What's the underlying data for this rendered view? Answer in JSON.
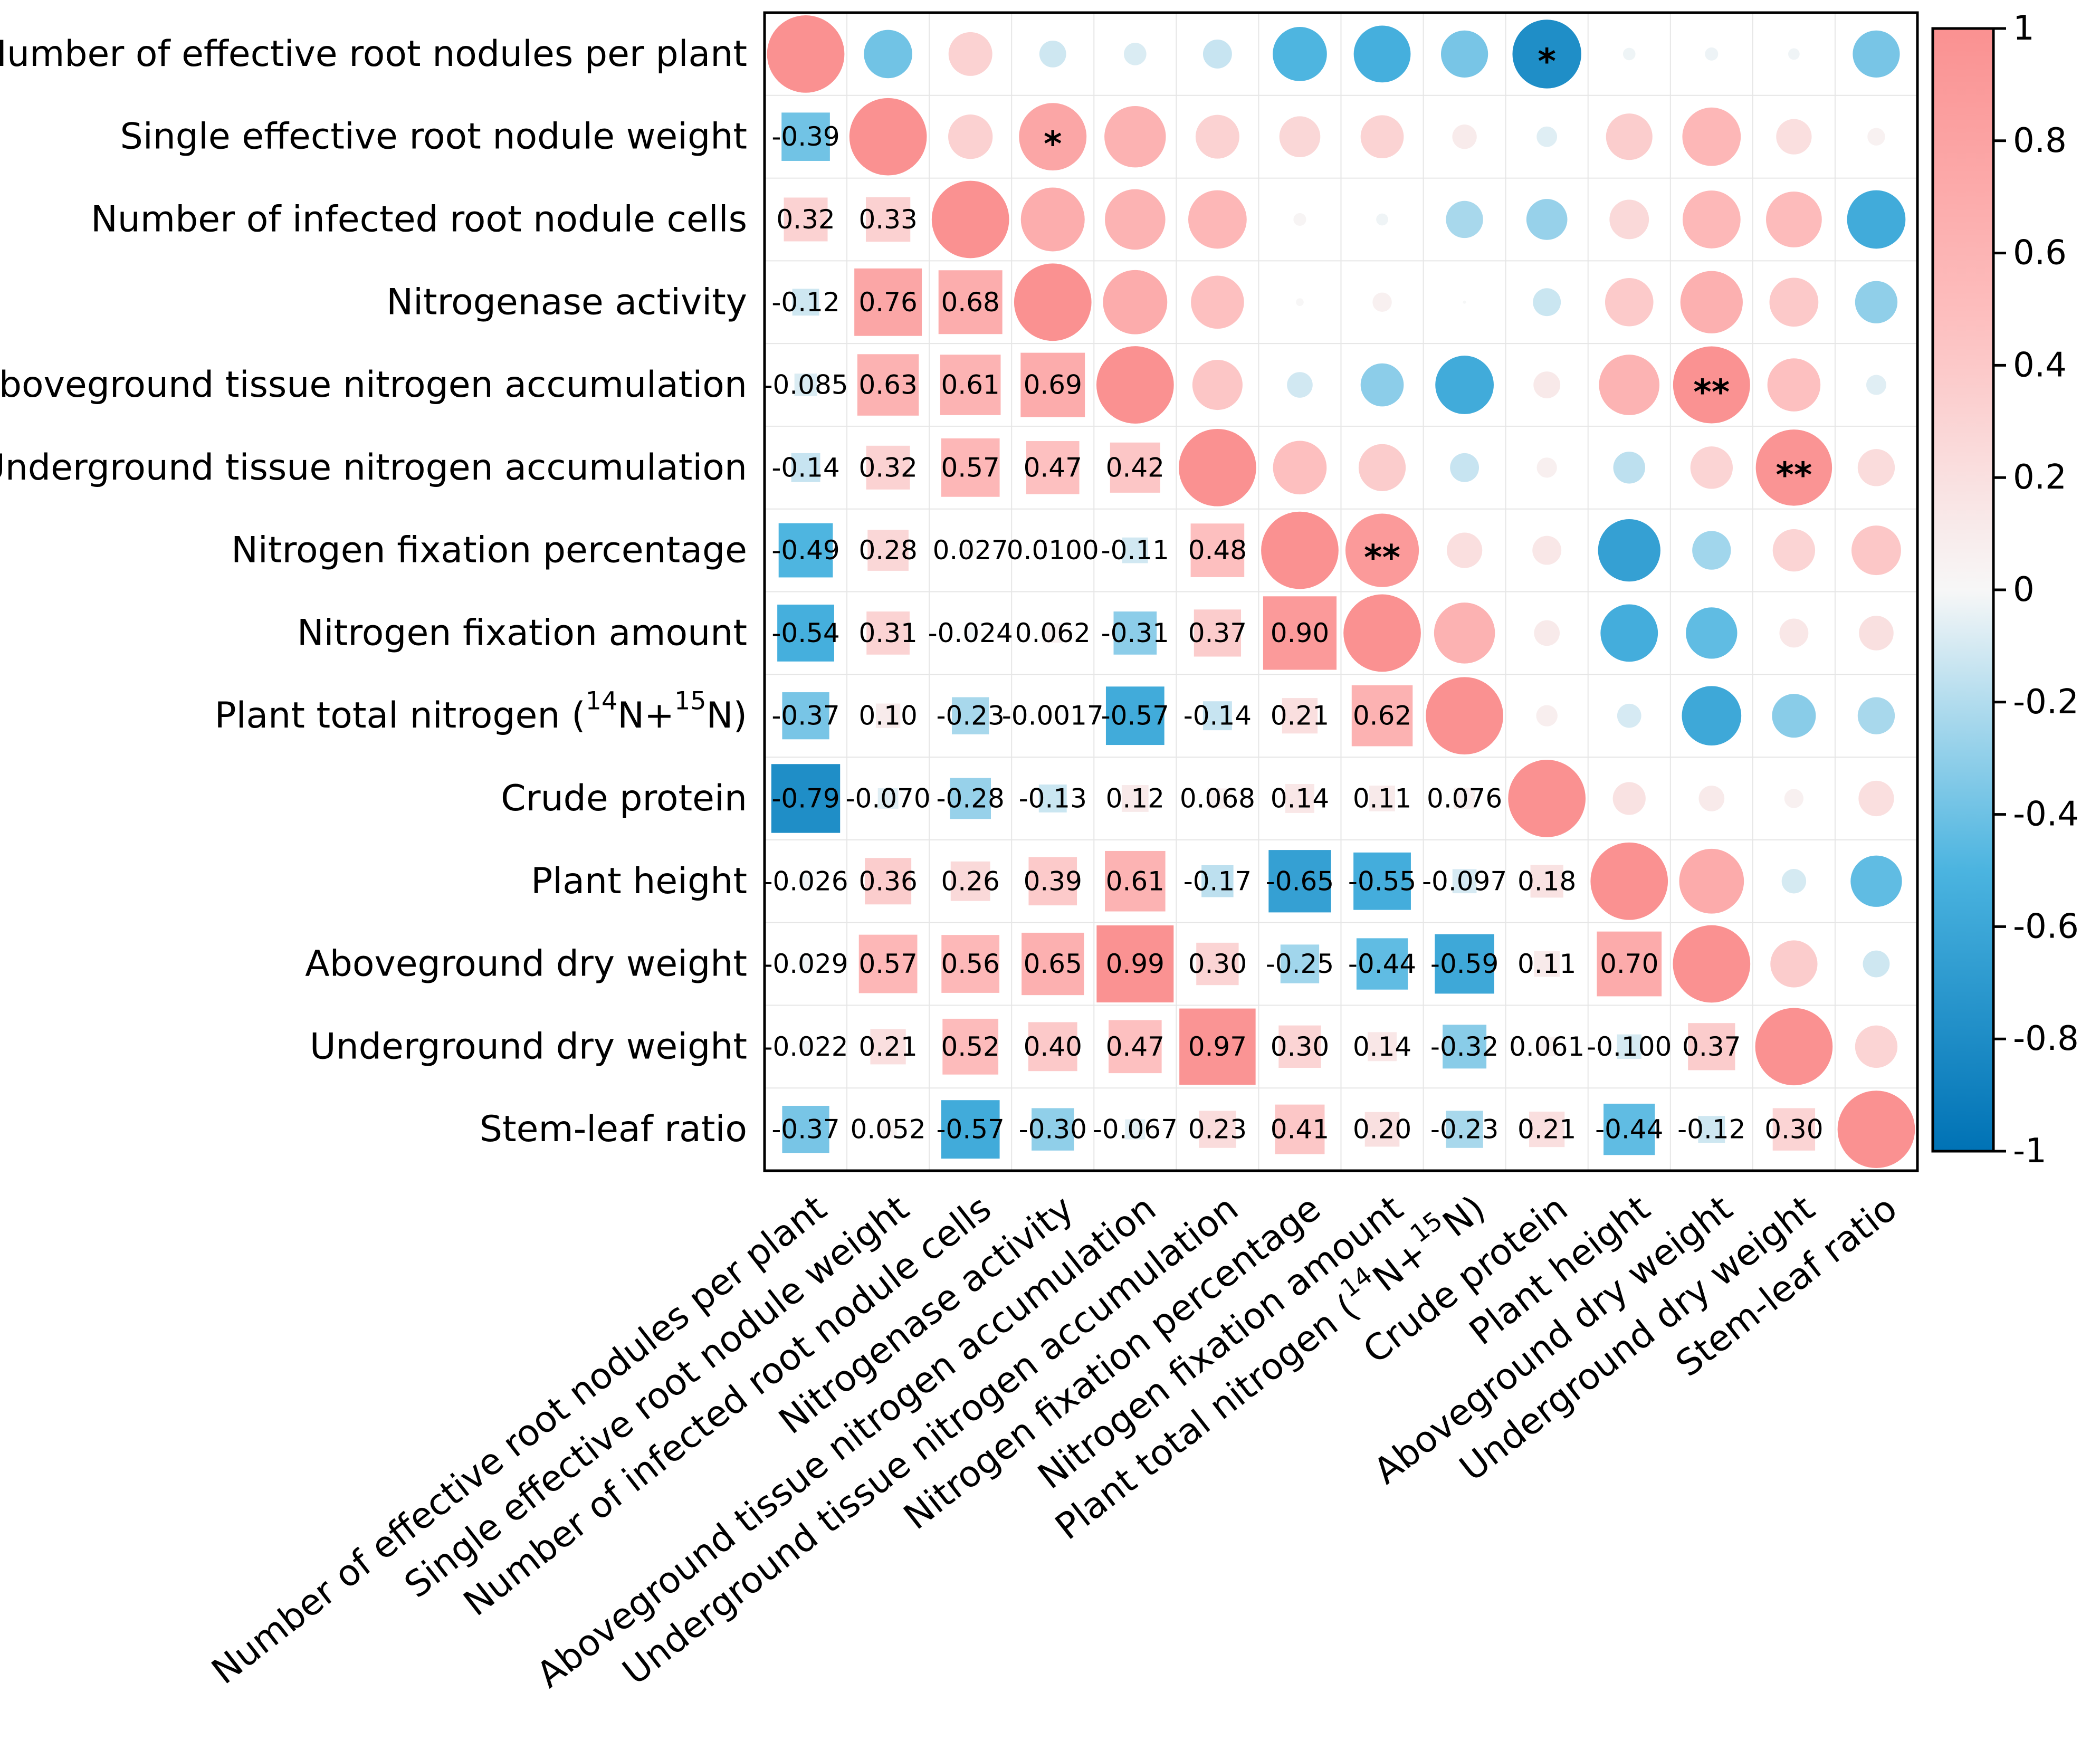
{
  "chart_data": {
    "type": "heatmap",
    "title": "",
    "xlabel": "",
    "ylabel": "",
    "variables": [
      "Number of effective root nodules per plant",
      "Single effective root nodule weight",
      "Number of infected root nodule cells",
      "Nitrogenase activity",
      "Aboveground tissue nitrogen accumulation",
      "Underground tissue nitrogen accumulation",
      "Nitrogen fixation percentage",
      "Nitrogen fixation amount",
      "Plant total nitrogen (14N+15N)",
      "Crude protein",
      "Plant height",
      "Aboveground dry weight",
      "Underground dry weight",
      "Stem-leaf ratio"
    ],
    "values": [
      [
        1,
        -0.39,
        0.32,
        -0.12,
        -0.085,
        -0.14,
        -0.49,
        -0.54,
        -0.37,
        -0.79,
        -0.026,
        -0.029,
        -0.022,
        -0.37
      ],
      [
        -0.39,
        1,
        0.33,
        0.76,
        0.63,
        0.32,
        0.28,
        0.31,
        0.1,
        -0.07,
        0.36,
        0.57,
        0.21,
        0.052
      ],
      [
        0.32,
        0.33,
        1,
        0.68,
        0.61,
        0.57,
        0.027,
        -0.024,
        -0.23,
        -0.28,
        0.26,
        0.56,
        0.52,
        -0.57
      ],
      [
        -0.12,
        0.76,
        0.68,
        1,
        0.69,
        0.47,
        0.01,
        0.062,
        -0.0017,
        -0.13,
        0.39,
        0.65,
        0.4,
        -0.3
      ],
      [
        -0.085,
        0.63,
        0.61,
        0.69,
        1,
        0.42,
        -0.11,
        -0.31,
        -0.57,
        0.12,
        0.61,
        0.99,
        0.47,
        -0.067
      ],
      [
        -0.14,
        0.32,
        0.57,
        0.47,
        0.42,
        1,
        0.48,
        0.37,
        -0.14,
        0.068,
        -0.17,
        0.3,
        0.97,
        0.23
      ],
      [
        -0.49,
        0.28,
        0.027,
        0.01,
        -0.11,
        0.48,
        1,
        0.9,
        0.21,
        0.14,
        -0.65,
        -0.25,
        0.3,
        0.41
      ],
      [
        -0.54,
        0.31,
        -0.024,
        0.062,
        -0.31,
        0.37,
        0.9,
        1,
        0.62,
        0.11,
        -0.55,
        -0.44,
        0.14,
        0.2
      ],
      [
        -0.37,
        0.1,
        -0.23,
        -0.0017,
        -0.57,
        -0.14,
        0.21,
        0.62,
        1,
        0.076,
        -0.097,
        -0.59,
        -0.32,
        -0.23
      ],
      [
        -0.79,
        -0.07,
        -0.28,
        -0.13,
        0.12,
        0.068,
        0.14,
        0.11,
        0.076,
        1,
        0.18,
        0.11,
        0.061,
        0.21
      ],
      [
        -0.026,
        0.36,
        0.26,
        0.39,
        0.61,
        -0.17,
        -0.65,
        -0.55,
        -0.097,
        0.18,
        1,
        0.7,
        -0.1,
        -0.44
      ],
      [
        -0.029,
        0.57,
        0.56,
        0.65,
        0.99,
        0.3,
        -0.25,
        -0.44,
        -0.59,
        0.11,
        0.7,
        1,
        0.37,
        -0.12
      ],
      [
        -0.022,
        0.21,
        0.52,
        0.4,
        0.47,
        0.97,
        0.3,
        0.14,
        -0.32,
        0.061,
        -0.1,
        0.37,
        1,
        0.3
      ],
      [
        -0.37,
        0.052,
        -0.57,
        -0.3,
        -0.067,
        0.23,
        0.41,
        0.2,
        -0.23,
        0.21,
        -0.44,
        -0.12,
        0.3,
        1
      ]
    ],
    "value_labels": [
      [
        "",
        "",
        "",
        "",
        "",
        "",
        "",
        "",
        "",
        "",
        "",
        "",
        "",
        ""
      ],
      [
        "-0.39",
        "",
        "",
        "",
        "",
        "",
        "",
        "",
        "",
        "",
        "",
        "",
        "",
        ""
      ],
      [
        "0.32",
        "0.33",
        "",
        "",
        "",
        "",
        "",
        "",
        "",
        "",
        "",
        "",
        "",
        ""
      ],
      [
        "-0.12",
        "0.76",
        "0.68",
        "",
        "",
        "",
        "",
        "",
        "",
        "",
        "",
        "",
        "",
        ""
      ],
      [
        "-0.085",
        "0.63",
        "0.61",
        "0.69",
        "",
        "",
        "",
        "",
        "",
        "",
        "",
        "",
        "",
        ""
      ],
      [
        "-0.14",
        "0.32",
        "0.57",
        "0.47",
        "0.42",
        "",
        "",
        "",
        "",
        "",
        "",
        "",
        "",
        ""
      ],
      [
        "-0.49",
        "0.28",
        "0.027",
        "0.0100",
        "-0.11",
        "0.48",
        "",
        "",
        "",
        "",
        "",
        "",
        "",
        ""
      ],
      [
        "-0.54",
        "0.31",
        "-0.024",
        "0.062",
        "-0.31",
        "0.37",
        "0.90",
        "",
        "",
        "",
        "",
        "",
        "",
        ""
      ],
      [
        "-0.37",
        "0.10",
        "-0.23",
        "-0.0017",
        "-0.57",
        "-0.14",
        "0.21",
        "0.62",
        "",
        "",
        "",
        "",
        "",
        ""
      ],
      [
        "-0.79",
        "-0.070",
        "-0.28",
        "-0.13",
        "0.12",
        "0.068",
        "0.14",
        "0.11",
        "0.076",
        "",
        "",
        "",
        "",
        ""
      ],
      [
        "-0.026",
        "0.36",
        "0.26",
        "0.39",
        "0.61",
        "-0.17",
        "-0.65",
        "-0.55",
        "-0.097",
        "0.18",
        "",
        "",
        "",
        ""
      ],
      [
        "-0.029",
        "0.57",
        "0.56",
        "0.65",
        "0.99",
        "0.30",
        "-0.25",
        "-0.44",
        "-0.59",
        "0.11",
        "0.70",
        "",
        "",
        ""
      ],
      [
        "-0.022",
        "0.21",
        "0.52",
        "0.40",
        "0.47",
        "0.97",
        "0.30",
        "0.14",
        "-0.32",
        "0.061",
        "-0.100",
        "0.37",
        "",
        ""
      ],
      [
        "-0.37",
        "0.052",
        "-0.57",
        "-0.30",
        "-0.067",
        "0.23",
        "0.41",
        "0.20",
        "-0.23",
        "0.21",
        "-0.44",
        "-0.12",
        "0.30",
        ""
      ]
    ],
    "significance": [
      {
        "row": 0,
        "col": 9,
        "label": "*"
      },
      {
        "row": 1,
        "col": 3,
        "label": "*"
      },
      {
        "row": 4,
        "col": 11,
        "label": "**"
      },
      {
        "row": 5,
        "col": 12,
        "label": "**"
      },
      {
        "row": 6,
        "col": 7,
        "label": "**"
      }
    ],
    "lower_triangle": "square",
    "upper_triangle": "circle",
    "colorbar": {
      "range": [
        -1,
        1
      ],
      "ticks": [
        "1",
        "0.8",
        "0.6",
        "0.4",
        "0.2",
        "0",
        "-0.2",
        "-0.4",
        "-0.6",
        "-0.8",
        "-1"
      ],
      "colors": {
        "negative": "#0072b5",
        "mid_negative": "#4bb4e0",
        "neutral": "#f7f7f7",
        "mid_positive": "#fdbdbd",
        "positive": "#fa9191"
      }
    }
  }
}
